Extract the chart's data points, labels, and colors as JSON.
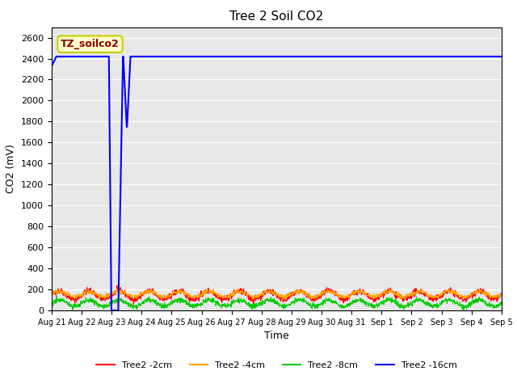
{
  "title": "Tree 2 Soil CO2",
  "xlabel": "Time",
  "ylabel": "CO2 (mV)",
  "ylim": [
    0,
    2700
  ],
  "yticks": [
    0,
    200,
    400,
    600,
    800,
    1000,
    1200,
    1400,
    1600,
    1800,
    2000,
    2200,
    2400,
    2600
  ],
  "annotation_text": "TZ_soilco2",
  "bg_color": "#e8e8e8",
  "line_colors": {
    "2cm": "#ff0000",
    "4cm": "#ffa500",
    "8cm": "#00cc00",
    "16cm": "#0000ff"
  },
  "legend_labels": [
    "Tree2 -2cm",
    "Tree2 -4cm",
    "Tree2 -8cm",
    "Tree2 -16cm"
  ],
  "tick_labels": [
    "Aug 21",
    "Aug 22",
    "Aug 23",
    "Aug 24",
    "Aug 25",
    "Aug 26",
    "Aug 27",
    "Aug 28",
    "Aug 29",
    "Aug 30",
    "Aug 31",
    "Sep 1",
    "Sep 2",
    "Sep 3",
    "Sep 4",
    "Sep 5"
  ]
}
